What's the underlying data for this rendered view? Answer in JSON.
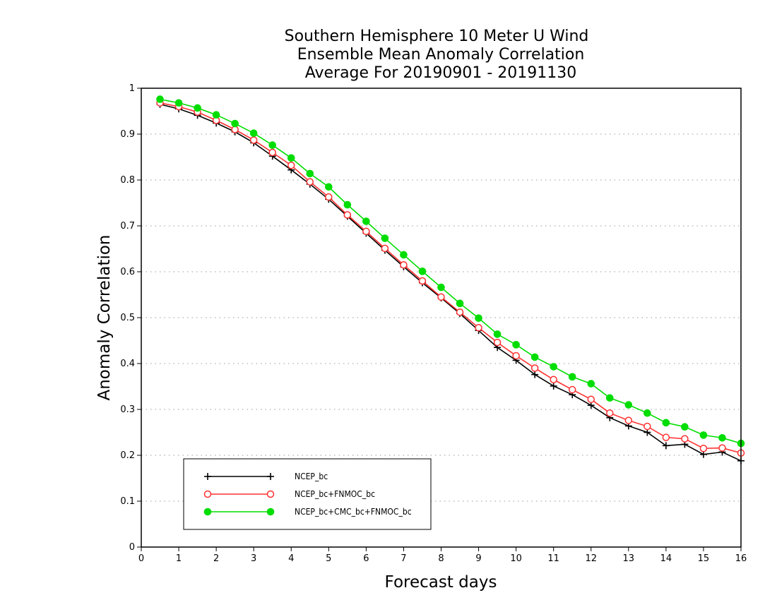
{
  "chart_data": {
    "type": "line",
    "title": [
      "Southern Hemisphere 10 Meter U Wind",
      "Ensemble Mean Anomaly Correlation",
      "Average For 20190901 - 20191130"
    ],
    "xlabel": "Forecast days",
    "ylabel": "Anomaly Correlation",
    "xlim": [
      0,
      16
    ],
    "ylim": [
      0,
      1
    ],
    "x_ticks": [
      "0",
      "1",
      "2",
      "3",
      "4",
      "5",
      "6",
      "7",
      "8",
      "9",
      "10",
      "11",
      "12",
      "13",
      "14",
      "15",
      "16"
    ],
    "y_ticks": [
      "0",
      "0.1",
      "0.2",
      "0.3",
      "0.4",
      "0.5",
      "0.6",
      "0.7",
      "0.8",
      "0.9",
      "1"
    ],
    "grid": "horizontal dotted",
    "legend_position": "lower-left",
    "x": [
      0.5,
      1,
      1.5,
      2,
      2.5,
      3,
      3.5,
      4,
      4.5,
      5,
      5.5,
      6,
      6.5,
      7,
      7.5,
      8,
      8.5,
      9,
      9.5,
      10,
      10.5,
      11,
      11.5,
      12,
      12.5,
      13,
      13.5,
      14,
      14.5,
      15,
      15.5,
      16
    ],
    "series": [
      {
        "name": "NCEP_bc",
        "color": "#000000",
        "marker": "plus",
        "values": [
          0.965,
          0.955,
          0.941,
          0.924,
          0.905,
          0.881,
          0.852,
          0.822,
          0.791,
          0.758,
          0.721,
          0.684,
          0.647,
          0.611,
          0.576,
          0.543,
          0.509,
          0.472,
          0.435,
          0.407,
          0.376,
          0.351,
          0.332,
          0.309,
          0.282,
          0.264,
          0.25,
          0.221,
          0.224,
          0.202,
          0.207,
          0.188
        ]
      },
      {
        "name": "NCEP_bc+FNMOC_bc",
        "color": "#ff3030",
        "marker": "open-circle",
        "values": [
          0.968,
          0.96,
          0.948,
          0.93,
          0.91,
          0.887,
          0.86,
          0.832,
          0.796,
          0.763,
          0.724,
          0.688,
          0.651,
          0.615,
          0.58,
          0.545,
          0.512,
          0.478,
          0.446,
          0.417,
          0.39,
          0.365,
          0.343,
          0.322,
          0.292,
          0.276,
          0.263,
          0.239,
          0.236,
          0.215,
          0.216,
          0.205
        ]
      },
      {
        "name": "NCEP_bc+CMC_bc+FNMOC_bc",
        "color": "#00dd00",
        "marker": "filled-circle",
        "values": [
          0.976,
          0.968,
          0.957,
          0.942,
          0.923,
          0.902,
          0.876,
          0.848,
          0.814,
          0.785,
          0.746,
          0.71,
          0.673,
          0.637,
          0.601,
          0.566,
          0.531,
          0.499,
          0.464,
          0.441,
          0.414,
          0.393,
          0.371,
          0.356,
          0.325,
          0.31,
          0.292,
          0.271,
          0.262,
          0.244,
          0.238,
          0.226
        ]
      }
    ]
  }
}
